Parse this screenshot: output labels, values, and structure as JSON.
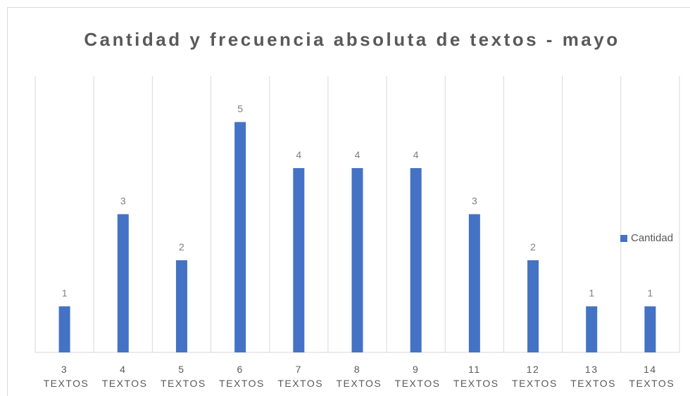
{
  "chart_data": {
    "type": "bar",
    "title": "Cantidad y frecuencia absoluta de textos - mayo",
    "categories": [
      "3 TEXTOS",
      "4 TEXTOS",
      "5 TEXTOS",
      "6 TEXTOS",
      "7 TEXTOS",
      "8 TEXTOS",
      "9 TEXTOS",
      "11 TEXTOS",
      "12 TEXTOS",
      "13 TEXTOS",
      "14 TEXTOS"
    ],
    "series": [
      {
        "name": "Cantidad",
        "color": "#4472c4",
        "values": [
          1,
          3,
          2,
          5,
          4,
          4,
          4,
          3,
          2,
          1,
          1
        ]
      }
    ],
    "ylim": [
      0,
      6
    ],
    "grid": true,
    "legend": "right"
  }
}
